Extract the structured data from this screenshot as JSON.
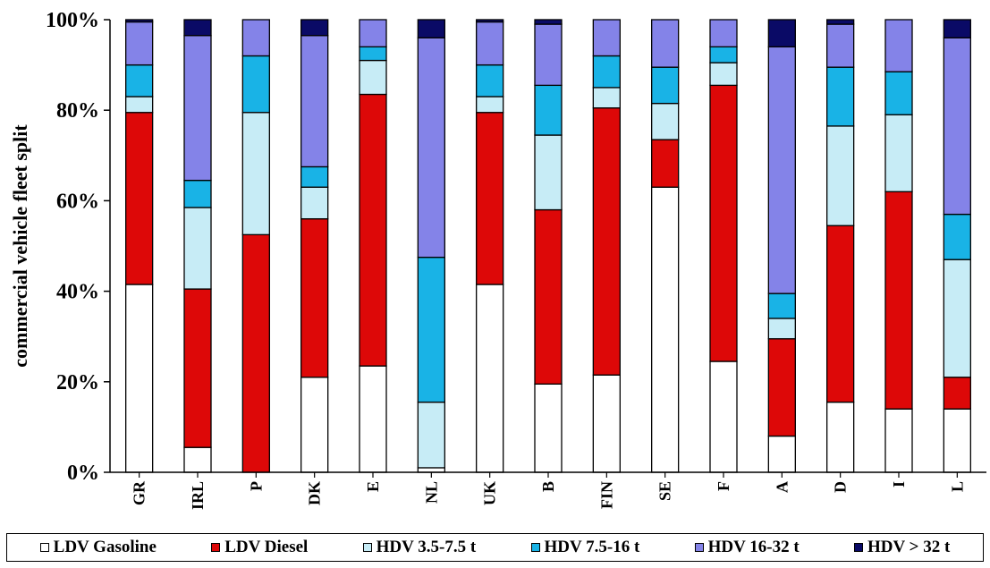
{
  "chart_data": {
    "type": "bar",
    "stacked": true,
    "percent": true,
    "ylabel": "commercial vehicle fleet split",
    "xlabel": "",
    "ylim": [
      0,
      100
    ],
    "yticks": [
      "0%",
      "20%",
      "40%",
      "60%",
      "80%",
      "100%"
    ],
    "categories": [
      "GR",
      "IRL",
      "P",
      "DK",
      "E",
      "NL",
      "UK",
      "B",
      "FIN",
      "SE",
      "F",
      "A",
      "D",
      "I",
      "L"
    ],
    "legend_position": "bottom",
    "series": [
      {
        "name": "LDV Gasoline",
        "color": "#ffffff",
        "values": [
          41.5,
          5.5,
          0,
          21,
          23.5,
          1,
          41.5,
          19.5,
          21.5,
          63,
          24.5,
          8,
          15.5,
          14,
          14
        ]
      },
      {
        "name": "LDV Diesel",
        "color": "#dd0808",
        "values": [
          38,
          35,
          52.5,
          35,
          60,
          0,
          38,
          38.5,
          59,
          10.5,
          61,
          21.5,
          39,
          48,
          7
        ]
      },
      {
        "name": "HDV 3.5-7.5 t",
        "color": "#c7ecf6",
        "values": [
          3.5,
          18,
          27,
          7,
          7.5,
          14.5,
          3.5,
          16.5,
          4.5,
          8,
          5,
          4.5,
          22,
          17,
          26
        ]
      },
      {
        "name": "HDV 7.5-16 t",
        "color": "#19b3e6",
        "values": [
          7,
          6,
          12.5,
          4.5,
          3,
          32,
          7,
          11,
          7,
          8,
          3.5,
          5.5,
          13,
          9.5,
          10
        ]
      },
      {
        "name": "HDV 16-32 t",
        "color": "#8483e8",
        "values": [
          9.5,
          32,
          8,
          29,
          6,
          48.5,
          9.5,
          13.5,
          8,
          10.5,
          6,
          54.5,
          9.5,
          11.5,
          39
        ]
      },
      {
        "name": "HDV > 32 t",
        "color": "#0a0a66",
        "values": [
          0.5,
          3.5,
          0,
          3.5,
          0,
          4,
          0.5,
          1,
          0,
          0,
          0,
          6,
          1,
          0,
          4
        ]
      }
    ]
  }
}
